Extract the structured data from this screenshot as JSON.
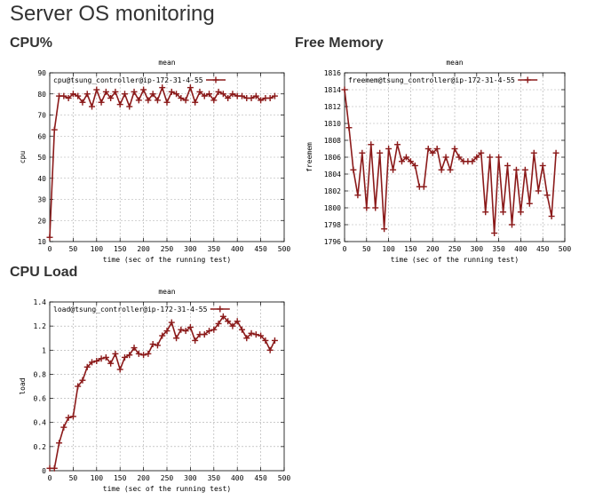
{
  "page": {
    "title": "Server OS monitoring"
  },
  "sections": [
    {
      "id": "cpu",
      "title": "CPU%"
    },
    {
      "id": "mem",
      "title": "Free Memory"
    },
    {
      "id": "load",
      "title": "CPU Load"
    }
  ],
  "chart_data": [
    {
      "id": "cpu",
      "type": "line",
      "title": "mean",
      "xlabel": "time (sec of the running test)",
      "ylabel": "cpu",
      "xlim": [
        0,
        500
      ],
      "ylim": [
        10,
        90
      ],
      "xticks": [
        0,
        50,
        100,
        150,
        200,
        250,
        300,
        350,
        400,
        450,
        500
      ],
      "yticks": [
        10,
        20,
        30,
        40,
        50,
        60,
        70,
        80,
        90
      ],
      "grid": true,
      "legend_position": "top-left",
      "series": [
        {
          "name": "cpu@tsung_controller@ip-172-31-4-55",
          "color": "#8b1a1a",
          "x": [
            0,
            10,
            20,
            30,
            40,
            50,
            60,
            70,
            80,
            90,
            100,
            110,
            120,
            130,
            140,
            150,
            160,
            170,
            180,
            190,
            200,
            210,
            220,
            230,
            240,
            250,
            260,
            270,
            280,
            290,
            300,
            310,
            320,
            330,
            340,
            350,
            360,
            370,
            380,
            390,
            400,
            410,
            420,
            430,
            440,
            450,
            460,
            470,
            480
          ],
          "y": [
            12,
            63,
            79,
            79,
            78,
            80,
            79,
            76,
            80,
            74,
            82,
            76,
            81,
            78,
            81,
            75,
            80,
            74,
            81,
            77,
            82,
            77,
            80,
            77,
            83,
            76,
            81,
            80,
            78,
            77,
            83,
            76,
            81,
            79,
            80,
            77,
            81,
            80,
            78,
            80,
            79,
            79,
            78,
            78,
            79,
            77,
            78,
            78,
            79
          ]
        }
      ]
    },
    {
      "id": "mem",
      "type": "line",
      "title": "mean",
      "xlabel": "time (sec of the running test)",
      "ylabel": "freemem",
      "xlim": [
        0,
        500
      ],
      "ylim": [
        1796,
        1816
      ],
      "xticks": [
        0,
        50,
        100,
        150,
        200,
        250,
        300,
        350,
        400,
        450,
        500
      ],
      "yticks": [
        1796,
        1798,
        1800,
        1802,
        1804,
        1806,
        1808,
        1810,
        1812,
        1814,
        1816
      ],
      "grid": true,
      "legend_position": "top-left",
      "series": [
        {
          "name": "freemem@tsung_controller@ip-172-31-4-55",
          "color": "#8b1a1a",
          "x": [
            0,
            10,
            20,
            30,
            40,
            50,
            60,
            70,
            80,
            90,
            100,
            110,
            120,
            130,
            140,
            150,
            160,
            170,
            180,
            190,
            200,
            210,
            220,
            230,
            240,
            250,
            260,
            270,
            280,
            290,
            300,
            310,
            320,
            330,
            340,
            350,
            360,
            370,
            380,
            390,
            400,
            410,
            420,
            430,
            440,
            450,
            460,
            470,
            480
          ],
          "y": [
            1814,
            1809.5,
            1804.5,
            1801.5,
            1806.5,
            1800,
            1807.5,
            1800,
            1806.5,
            1797.5,
            1807,
            1804.5,
            1807.5,
            1805.5,
            1806,
            1805.5,
            1805,
            1802.5,
            1802.5,
            1807,
            1806.5,
            1807,
            1804.5,
            1806,
            1804.5,
            1807,
            1806,
            1805.5,
            1805.5,
            1805.5,
            1806,
            1806.5,
            1799.5,
            1806,
            1797,
            1806,
            1799.5,
            1805,
            1798,
            1804.5,
            1799.5,
            1804.5,
            1800.5,
            1806.5,
            1802,
            1805,
            1801.5,
            1799,
            1806.5
          ]
        }
      ]
    },
    {
      "id": "load",
      "type": "line",
      "title": "mean",
      "xlabel": "time (sec of the running test)",
      "ylabel": "load",
      "xlim": [
        0,
        500
      ],
      "ylim": [
        0,
        1.4
      ],
      "xticks": [
        0,
        50,
        100,
        150,
        200,
        250,
        300,
        350,
        400,
        450,
        500
      ],
      "yticks": [
        0,
        0.2,
        0.4,
        0.6,
        0.8,
        1,
        1.2,
        1.4
      ],
      "grid": true,
      "legend_position": "top-left",
      "series": [
        {
          "name": "load@tsung_controller@ip-172-31-4-55",
          "color": "#8b1a1a",
          "x": [
            0,
            10,
            20,
            30,
            40,
            50,
            60,
            70,
            80,
            90,
            100,
            110,
            120,
            130,
            140,
            150,
            160,
            170,
            180,
            190,
            200,
            210,
            220,
            230,
            240,
            250,
            260,
            270,
            280,
            290,
            300,
            310,
            320,
            330,
            340,
            350,
            360,
            370,
            380,
            390,
            400,
            410,
            420,
            430,
            440,
            450,
            460,
            470,
            480
          ],
          "y": [
            0.02,
            0.02,
            0.23,
            0.36,
            0.44,
            0.45,
            0.7,
            0.75,
            0.86,
            0.9,
            0.91,
            0.93,
            0.94,
            0.89,
            0.97,
            0.84,
            0.94,
            0.96,
            1.02,
            0.97,
            0.96,
            0.97,
            1.05,
            1.04,
            1.12,
            1.16,
            1.23,
            1.1,
            1.17,
            1.16,
            1.19,
            1.08,
            1.13,
            1.13,
            1.16,
            1.17,
            1.22,
            1.28,
            1.24,
            1.2,
            1.24,
            1.17,
            1.1,
            1.14,
            1.13,
            1.12,
            1.08,
            1.0,
            1.08
          ]
        }
      ]
    }
  ]
}
